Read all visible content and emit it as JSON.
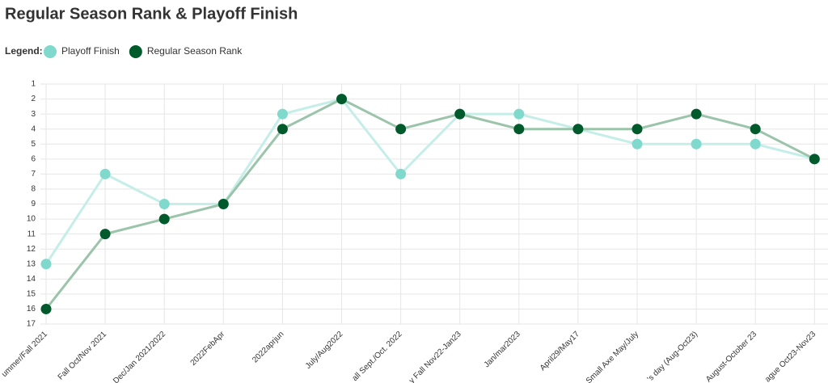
{
  "chart_data": {
    "type": "line",
    "title": "Regular Season Rank & Playoff Finish",
    "legend_label": "Legend:",
    "categories": [
      "ummer/Fall 2021",
      "Fall Oct/Nov 2021",
      "Dec/Jan 2021/2022",
      "2022FebApr",
      "2022aprjun",
      "July/Aug2022",
      "all Sept./Oct. 2022",
      "y Fall Nov22-Jan23",
      "Jan/mar2023",
      "April29/May17",
      "Small Axe May/July",
      "'s day (Aug-Oct23)",
      "August-October 23",
      "ague Oct23-Nov23"
    ],
    "series": [
      {
        "name": "Playoff Finish",
        "color": "#7fd9cc",
        "values": [
          13,
          7,
          9,
          9,
          3,
          2,
          7,
          3,
          3,
          4,
          5,
          5,
          5,
          6
        ]
      },
      {
        "name": "Regular Season Rank",
        "color": "#005a2b",
        "values": [
          16,
          11,
          10,
          9,
          4,
          2,
          4,
          3,
          4,
          4,
          4,
          3,
          4,
          6
        ]
      }
    ],
    "ylim": [
      1,
      17
    ],
    "yticks": [
      1,
      2,
      3,
      4,
      5,
      6,
      7,
      8,
      9,
      10,
      11,
      12,
      13,
      14,
      15,
      16,
      17
    ],
    "y_inverted": true,
    "grid": true,
    "legend": "top-left"
  }
}
